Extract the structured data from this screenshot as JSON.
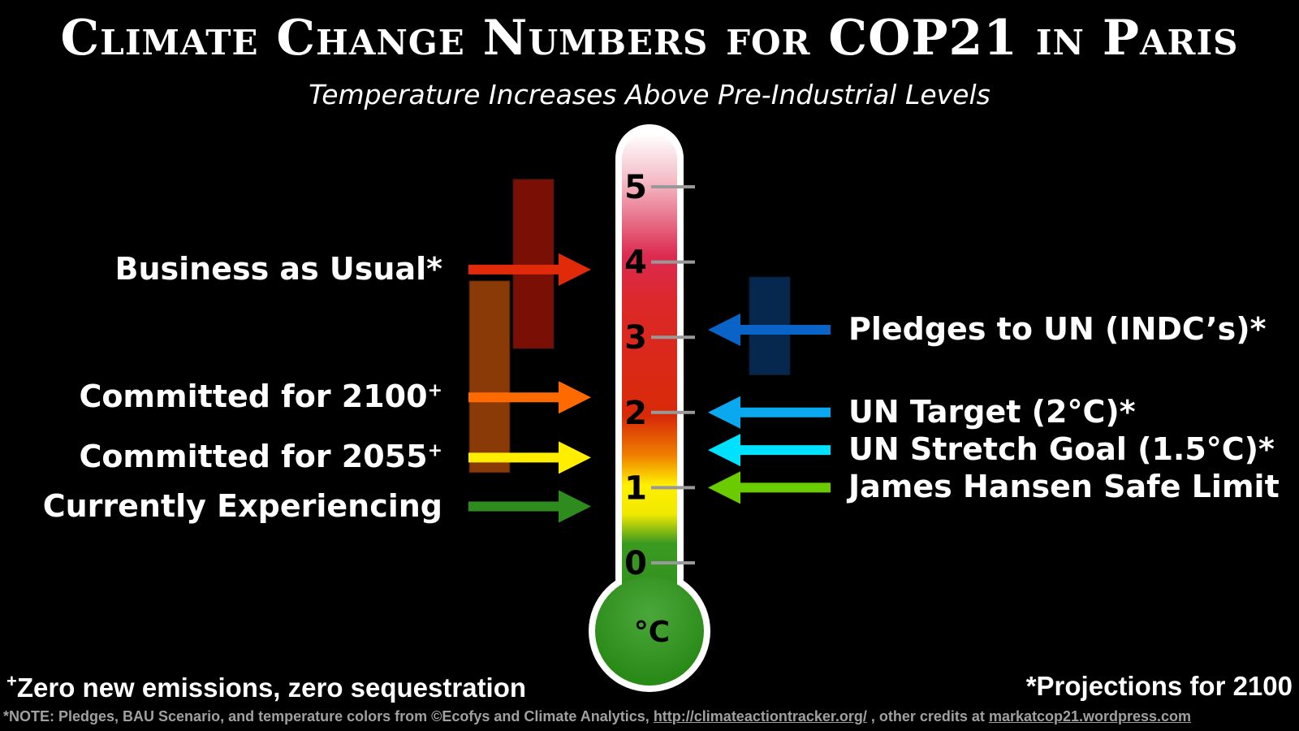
{
  "title": "Climate Change Numbers for COP21 in Paris",
  "subtitle": "Temperature Increases Above Pre-Industrial Levels",
  "unit": "°C",
  "scale": {
    "min": 0,
    "max": 5,
    "ticks": [
      "0",
      "1",
      "2",
      "3",
      "4",
      "5"
    ]
  },
  "left_items": [
    {
      "label": "Business as Usual*",
      "sup": "",
      "value": 3.9,
      "color": "#e02a0a",
      "range": [
        2.85,
        5.1
      ],
      "range_color": "#7a1005"
    },
    {
      "label": "Committed for 2100",
      "sup": "+",
      "value": 2.2,
      "color": "#ff6a00",
      "range": [
        1.2,
        3.75
      ],
      "range_color": "#8a3a06"
    },
    {
      "label": "Committed for 2055",
      "sup": "+",
      "value": 1.4,
      "color": "#ffee00"
    },
    {
      "label": "Currently Experiencing",
      "sup": "",
      "value": 0.75,
      "color": "#2e8b1e"
    }
  ],
  "right_items": [
    {
      "label": "Pledges to UN (INDC’s)*",
      "value": 3.1,
      "color": "#0a64c8",
      "range": [
        2.5,
        3.8
      ],
      "range_color": "#06284e"
    },
    {
      "label": "UN Target (2°C)*",
      "value": 2.0,
      "color": "#0aa8ee"
    },
    {
      "label": "UN Stretch Goal (1.5°C)*",
      "value": 1.5,
      "color": "#00e0ff"
    },
    {
      "label": "James Hansen Safe Limit",
      "value": 1.0,
      "color": "#6acc00"
    }
  ],
  "footer": {
    "left_sup": "+",
    "left": "Zero new emissions, zero sequestration",
    "right": "*Projections for 2100",
    "note_prefix": "*NOTE: Pledges, BAU Scenario, and temperature colors from ©Ecofys and Climate Analytics, ",
    "note_link1": "http://climateactiontracker.org/",
    "note_mid": " , other credits at ",
    "note_link2": "markatcop21.wordpress.com"
  }
}
